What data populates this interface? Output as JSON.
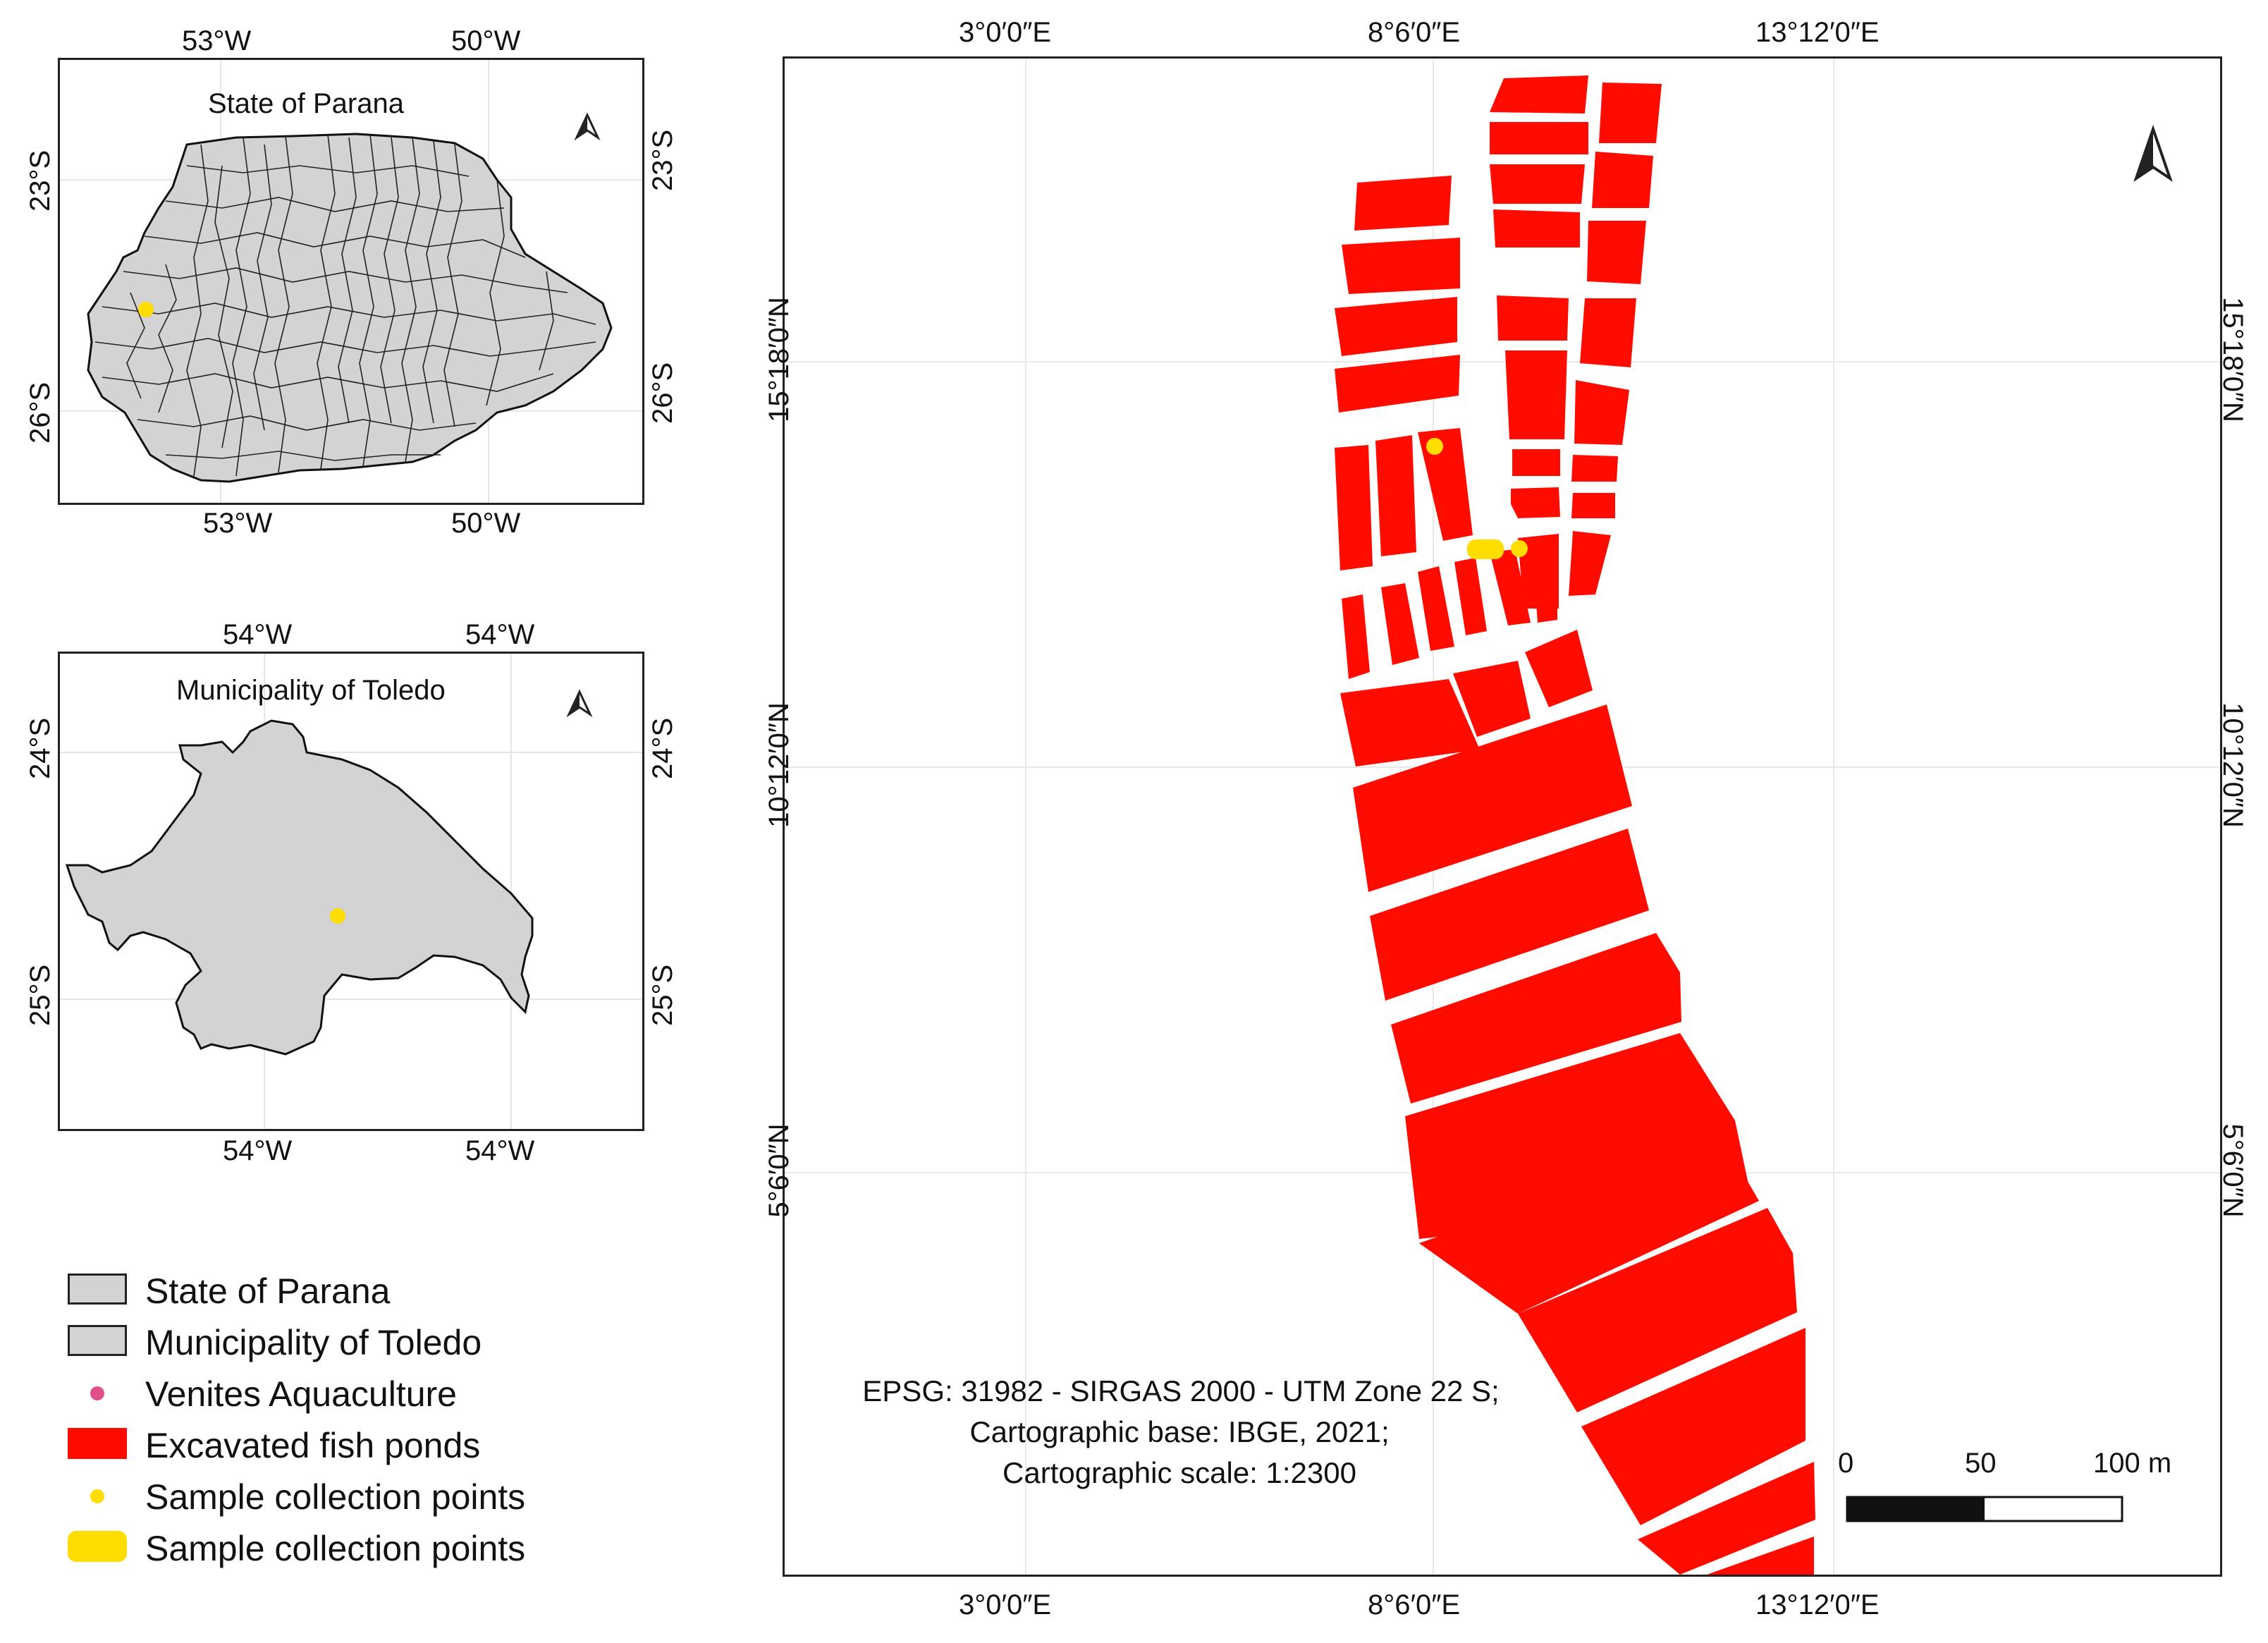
{
  "state_inset": {
    "title": "State of Parana",
    "top_ticks": [
      "53°W",
      "50°W"
    ],
    "bottom_ticks": [
      "53°W",
      "50°W"
    ],
    "left_ticks": [
      "23°S",
      "26°S"
    ],
    "right_ticks": [
      "23°S",
      "26°S"
    ]
  },
  "toledo_inset": {
    "title": "Municipality of Toledo",
    "top_ticks": [
      "54°W",
      "54°W"
    ],
    "bottom_ticks": [
      "54°W",
      "54°W"
    ],
    "left_ticks": [
      "24°S",
      "25°S"
    ],
    "right_ticks": [
      "24°S",
      "25°S"
    ]
  },
  "main_map": {
    "top_ticks": [
      "3°0′0″E",
      "8°6′0″E",
      "13°12′0″E"
    ],
    "bottom_ticks": [
      "3°0′0″E",
      "8°6′0″E",
      "13°12′0″E"
    ],
    "left_ticks": [
      "15°18′0″N",
      "10°12′0″N",
      "5°6′0″N"
    ],
    "right_ticks": [
      "15°18′0″N",
      "10°12′0″N",
      "5°6′0″N"
    ],
    "note_line1": "EPSG: 31982 - SIRGAS 2000 - UTM Zone 22 S;",
    "note_line2": "Cartographic base: IBGE, 2021;",
    "note_line3": "Cartographic scale: 1:2300",
    "scale_labels": [
      "0",
      "50",
      "100 m"
    ]
  },
  "legend": {
    "items": [
      {
        "label": "State of Parana",
        "symbol": "gray-box"
      },
      {
        "label": "Municipality of Toledo",
        "symbol": "gray-box"
      },
      {
        "label": "Venites Aquaculture",
        "symbol": "pink-dot"
      },
      {
        "label": "Excavated fish ponds",
        "symbol": "red-box"
      },
      {
        "label": "Sample collection points",
        "symbol": "yellow-dot"
      },
      {
        "label": "Sample collection points",
        "symbol": "yellow-box"
      }
    ]
  },
  "colors": {
    "ponds": "#ff0b00",
    "sample": "#ffdd00",
    "region_fill": "#d3d3d3",
    "venites": "#e0508a"
  }
}
